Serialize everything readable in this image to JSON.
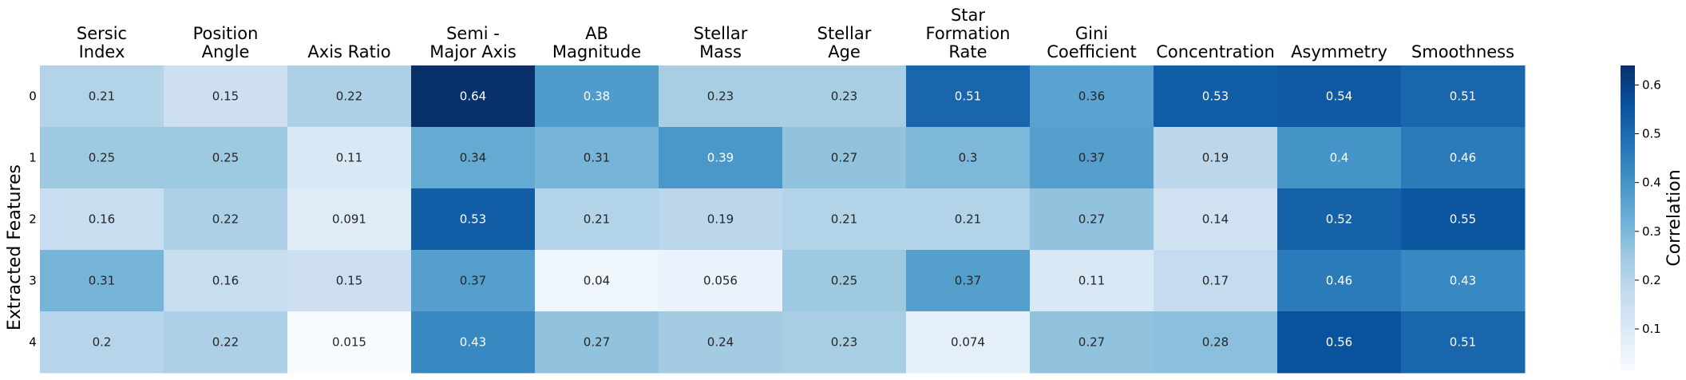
{
  "chart_data": {
    "type": "heatmap",
    "columns": [
      [
        "Sersic",
        "Index"
      ],
      [
        "Position",
        "Angle"
      ],
      [
        "Axis Ratio"
      ],
      [
        "Semi -",
        "Major Axis"
      ],
      [
        "AB",
        "Magnitude"
      ],
      [
        "Stellar",
        "Mass"
      ],
      [
        "Stellar",
        "Age"
      ],
      [
        "Star",
        "Formation",
        "Rate"
      ],
      [
        "Gini",
        "Coefficient"
      ],
      [
        "Concentration"
      ],
      [
        "Asymmetry"
      ],
      [
        "Smoothness"
      ]
    ],
    "rows": [
      "0",
      "1",
      "2",
      "3",
      "4"
    ],
    "values": [
      [
        0.21,
        0.15,
        0.22,
        0.64,
        0.38,
        0.23,
        0.23,
        0.51,
        0.36,
        0.53,
        0.54,
        0.51
      ],
      [
        0.25,
        0.25,
        0.11,
        0.34,
        0.31,
        0.39,
        0.27,
        0.3,
        0.37,
        0.19,
        0.4,
        0.46
      ],
      [
        0.16,
        0.22,
        0.091,
        0.53,
        0.21,
        0.19,
        0.21,
        0.21,
        0.27,
        0.14,
        0.52,
        0.55
      ],
      [
        0.31,
        0.16,
        0.15,
        0.37,
        0.04,
        0.056,
        0.25,
        0.37,
        0.11,
        0.17,
        0.46,
        0.43
      ],
      [
        0.2,
        0.22,
        0.015,
        0.43,
        0.27,
        0.24,
        0.23,
        0.074,
        0.27,
        0.28,
        0.56,
        0.51
      ]
    ],
    "ylabel": "Extracted Features",
    "colorbar": {
      "label": "Correlation",
      "range": [
        0.015,
        0.64
      ],
      "ticks": [
        "0.1",
        "0.2",
        "0.3",
        "0.4",
        "0.5",
        "0.6"
      ],
      "colormap": "Blues"
    }
  }
}
